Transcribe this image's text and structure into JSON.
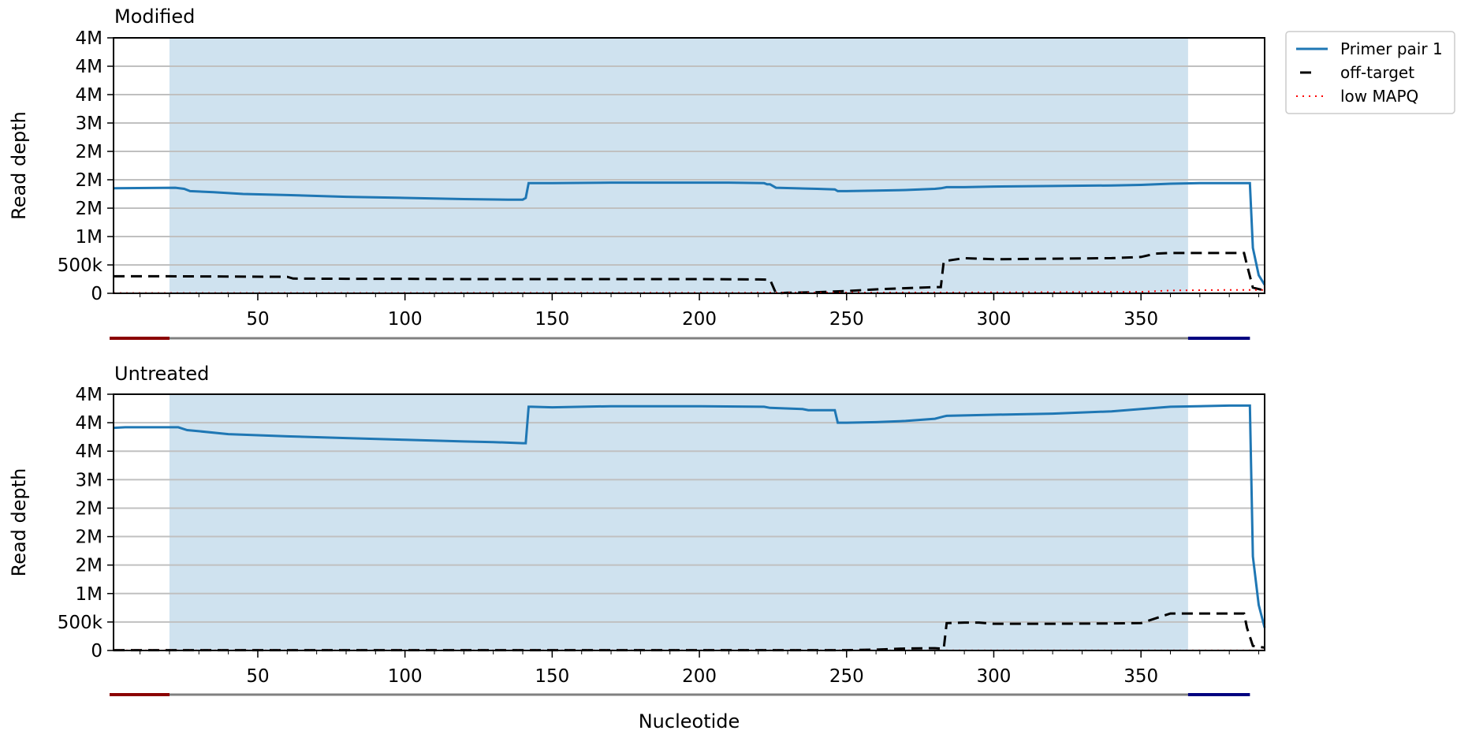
{
  "chart_data": {
    "type": "line",
    "x_axis_label": "Nucleotide",
    "x_ticks": [
      50,
      100,
      150,
      200,
      250,
      300,
      350
    ],
    "xlim": [
      1,
      392
    ],
    "colors": {
      "primer_pair": "#1f77b4",
      "shade": "#cfe2ef",
      "off_target": "#000000",
      "low_mapq": "#ff0000",
      "left_primer_bar": "#8b0000",
      "right_primer_bar": "#000080",
      "amplicon_bar": "#808080",
      "grid": "#c0c0c0"
    },
    "legend": [
      {
        "label": "Primer pair 1",
        "style": "solid",
        "color": "#1f77b4"
      },
      {
        "label": "off-target",
        "style": "dashed",
        "color": "#000000"
      },
      {
        "label": "low MAPQ",
        "style": "dotted",
        "color": "#ff0000"
      }
    ],
    "annotation_bar": {
      "left_primer": [
        1,
        20
      ],
      "right_primer": [
        366,
        387
      ],
      "amplicon": [
        1,
        387
      ]
    },
    "shaded_region": [
      20,
      366
    ],
    "panels": [
      {
        "title": "Modified",
        "y_axis_label": "Read depth",
        "ylim": [
          0,
          4500000
        ],
        "y_ticks": [
          0,
          500000,
          1000000,
          1500000,
          2000000,
          2500000,
          3000000,
          3500000,
          4000000,
          4500000
        ],
        "y_tick_labels": [
          "0",
          "500k",
          "1M",
          "2M",
          "2M",
          "2M",
          "3M",
          "4M",
          "4M",
          "4M"
        ],
        "series": [
          {
            "name": "Primer pair 1",
            "style": "solid",
            "x": [
              1,
              22,
              25,
              27,
              35,
              45,
              60,
              80,
              100,
              120,
              135,
              140,
              141,
              142,
              143,
              150,
              170,
              190,
              210,
              222,
              223,
              224,
              226,
              240,
              246,
              247,
              250,
              260,
              270,
              280,
              282,
              284,
              290,
              300,
              320,
              340,
              350,
              355,
              360,
              370,
              387,
              388,
              390,
              392
            ],
            "y": [
              1850000,
              1860000,
              1840000,
              1800000,
              1780000,
              1750000,
              1730000,
              1700000,
              1680000,
              1660000,
              1650000,
              1650000,
              1680000,
              1940000,
              1940000,
              1940000,
              1950000,
              1950000,
              1950000,
              1940000,
              1920000,
              1920000,
              1860000,
              1840000,
              1830000,
              1800000,
              1800000,
              1810000,
              1820000,
              1840000,
              1850000,
              1870000,
              1870000,
              1880000,
              1890000,
              1900000,
              1910000,
              1920000,
              1930000,
              1940000,
              1940000,
              800000,
              320000,
              150000
            ]
          },
          {
            "name": "off-target",
            "style": "dashed",
            "x": [
              1,
              20,
              60,
              62,
              80,
              100,
              120,
              140,
              160,
              180,
              200,
              220,
              224,
              226,
              230,
              240,
              250,
              260,
              270,
              280,
              282,
              283,
              285,
              290,
              300,
              320,
              340,
              350,
              355,
              360,
              385,
              386,
              388,
              392
            ],
            "y": [
              300000,
              300000,
              290000,
              260000,
              255000,
              255000,
              250000,
              250000,
              250000,
              250000,
              250000,
              245000,
              240000,
              0,
              10000,
              20000,
              40000,
              70000,
              90000,
              110000,
              110000,
              560000,
              580000,
              620000,
              600000,
              610000,
              620000,
              640000,
              700000,
              710000,
              710000,
              500000,
              100000,
              50000
            ]
          },
          {
            "name": "low MAPQ",
            "style": "dotted",
            "x": [
              1,
              100,
              200,
              300,
              350,
              360,
              380,
              388,
              392
            ],
            "y": [
              5000,
              5000,
              8000,
              15000,
              25000,
              50000,
              60000,
              60000,
              60000
            ]
          }
        ]
      },
      {
        "title": "Untreated",
        "y_axis_label": "Read depth",
        "ylim": [
          0,
          4500000
        ],
        "y_ticks": [
          0,
          500000,
          1000000,
          1500000,
          2000000,
          2500000,
          3000000,
          3500000,
          4000000,
          4500000
        ],
        "y_tick_labels": [
          "0",
          "500k",
          "1M",
          "2M",
          "2M",
          "2M",
          "3M",
          "4M",
          "4M",
          "4M"
        ],
        "series": [
          {
            "name": "Primer pair 1",
            "style": "solid",
            "x": [
              1,
              5,
              20,
              23,
              26,
              30,
              40,
              50,
              60,
              80,
              100,
              120,
              130,
              140,
              141,
              142,
              143,
              150,
              170,
              200,
              222,
              224,
              235,
              237,
              246,
              247,
              250,
              260,
              270,
              280,
              283,
              284,
              300,
              320,
              340,
              350,
              360,
              380,
              387,
              388,
              390,
              392
            ],
            "y": [
              3910000,
              3920000,
              3920000,
              3920000,
              3870000,
              3850000,
              3800000,
              3780000,
              3760000,
              3730000,
              3700000,
              3670000,
              3660000,
              3640000,
              3640000,
              4280000,
              4280000,
              4270000,
              4290000,
              4290000,
              4280000,
              4260000,
              4240000,
              4220000,
              4220000,
              4000000,
              4000000,
              4010000,
              4030000,
              4070000,
              4110000,
              4120000,
              4140000,
              4160000,
              4200000,
              4240000,
              4280000,
              4300000,
              4300000,
              1650000,
              800000,
              400000
            ]
          },
          {
            "name": "off-target",
            "style": "dashed",
            "x": [
              1,
              100,
              200,
              250,
              260,
              270,
              280,
              283,
              284,
              290,
              295,
              300,
              320,
              340,
              350,
              360,
              385,
              386,
              388,
              392
            ],
            "y": [
              5000,
              5000,
              5000,
              5000,
              15000,
              35000,
              40000,
              30000,
              480000,
              490000,
              490000,
              470000,
              470000,
              475000,
              480000,
              650000,
              650000,
              400000,
              80000,
              50000
            ]
          },
          {
            "name": "low MAPQ",
            "style": "dotted",
            "x": [
              1,
              100,
              200,
              300,
              392
            ],
            "y": [
              2000,
              2000,
              2000,
              2000,
              2000
            ]
          }
        ]
      }
    ]
  }
}
